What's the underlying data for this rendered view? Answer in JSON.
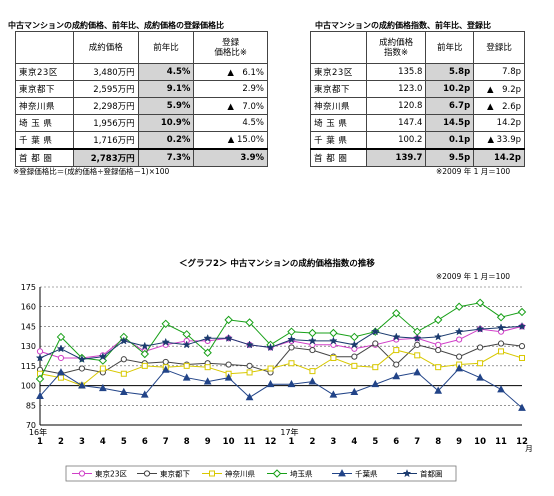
{
  "left_table": {
    "title": "中古マンションの成約価格、前年比、成約価格の登録価格比",
    "headers": [
      "",
      "成約価格",
      "前年比",
      "登録\n価格比※"
    ],
    "rows": [
      {
        "region": "東京23区",
        "price": "3,480万円",
        "yoy": "4.5%",
        "ratio": "▲　6.1%"
      },
      {
        "region": "東京都下",
        "price": "2,595万円",
        "yoy": "9.1%",
        "ratio": "2.9%"
      },
      {
        "region": "神奈川県",
        "price": "2,298万円",
        "yoy": "5.9%",
        "ratio": "▲　7.0%"
      },
      {
        "region": "埼 玉 県",
        "price": "1,956万円",
        "yoy": "10.9%",
        "ratio": "4.5%"
      },
      {
        "region": "千 葉 県",
        "price": "1,716万円",
        "yoy": "0.2%",
        "ratio": "▲ 15.0%"
      }
    ],
    "total": {
      "region": "首 都 圏",
      "price": "2,783万円",
      "yoy": "7.3%",
      "ratio": "3.9%"
    },
    "footnote": "※登録価格比＝(成約価格÷登録価格－1)×100"
  },
  "right_table": {
    "title": "中古マンションの成約価格指数、前年比、登録比",
    "headers": [
      "",
      "成約価格\n指数※",
      "前年比",
      "登録比"
    ],
    "rows": [
      {
        "region": "東京23区",
        "index": "135.8",
        "yoy": "5.8p",
        "reg": "7.8p"
      },
      {
        "region": "東京都下",
        "index": "123.0",
        "yoy": "10.2p",
        "reg": "▲　9.2p"
      },
      {
        "region": "神奈川県",
        "index": "120.8",
        "yoy": "6.7p",
        "reg": "▲　2.6p"
      },
      {
        "region": "埼 玉 県",
        "index": "147.4",
        "yoy": "14.5p",
        "reg": "14.2p"
      },
      {
        "region": "千 葉 県",
        "index": "100.2",
        "yoy": "0.1p",
        "reg": "▲ 33.9p"
      }
    ],
    "total": {
      "region": "首 都 圏",
      "index": "139.7",
      "yoy": "9.5p",
      "reg": "14.2p"
    },
    "footnote": "※2009 年 1 月＝100"
  },
  "chart_data": {
    "type": "line",
    "title": "＜グラフ2＞ 中古マンションの成約価格指数の推移",
    "note": "※2009 年 1 月＝100",
    "x": [
      "1",
      "2",
      "3",
      "4",
      "5",
      "6",
      "7",
      "8",
      "9",
      "10",
      "11",
      "12",
      "1",
      "2",
      "3",
      "4",
      "5",
      "6",
      "7",
      "8",
      "9",
      "10",
      "11",
      "12"
    ],
    "year_labels": [
      {
        "index": 0,
        "label": "16年"
      },
      {
        "index": 12,
        "label": "17年"
      }
    ],
    "x_unit": "月",
    "ylim": [
      70,
      175
    ],
    "yticks": [
      70,
      85,
      100,
      115,
      130,
      145,
      160,
      175
    ],
    "grid": true,
    "reference_line": 100,
    "legend_position": "bottom",
    "series": [
      {
        "name": "東京23区",
        "color": "#d040c8",
        "marker": "circle",
        "values": [
          126,
          121,
          121,
          123,
          136,
          126,
          131,
          134,
          134,
          136,
          131,
          129,
          134,
          131,
          131,
          128,
          131,
          135,
          136,
          131,
          135,
          143,
          141,
          145
        ]
      },
      {
        "name": "東京都下",
        "color": "#444444",
        "marker": "circle",
        "values": [
          112,
          109,
          113,
          110,
          120,
          117,
          118,
          116,
          117,
          116,
          115,
          110,
          129,
          127,
          122,
          122,
          132,
          116,
          131,
          127,
          122,
          129,
          132,
          130
        ]
      },
      {
        "name": "神奈川県",
        "color": "#d8c800",
        "marker": "square",
        "values": [
          109,
          106,
          100,
          113,
          109,
          115,
          114,
          115,
          114,
          109,
          110,
          113,
          117,
          111,
          121,
          115,
          114,
          127,
          123,
          114,
          116,
          117,
          126,
          121
        ]
      },
      {
        "name": "埼玉県",
        "color": "#18a018",
        "marker": "diamond",
        "values": [
          105,
          137,
          121,
          119,
          137,
          124,
          147,
          139,
          125,
          150,
          148,
          131,
          141,
          140,
          140,
          137,
          141,
          155,
          141,
          150,
          160,
          163,
          152,
          156
        ]
      },
      {
        "name": "千葉県",
        "color": "#224488",
        "marker": "triangle",
        "values": [
          92,
          110,
          100,
          98,
          95,
          93,
          112,
          106,
          103,
          106,
          91,
          101,
          101,
          103,
          93,
          95,
          101,
          107,
          110,
          96,
          113,
          106,
          97,
          83
        ]
      },
      {
        "name": "首都圏",
        "color": "#1a3a6e",
        "marker": "star",
        "values": [
          121,
          128,
          120,
          122,
          134,
          130,
          133,
          131,
          136,
          136,
          131,
          129,
          135,
          134,
          134,
          131,
          141,
          137,
          136,
          137,
          141,
          143,
          144,
          145
        ]
      }
    ]
  }
}
